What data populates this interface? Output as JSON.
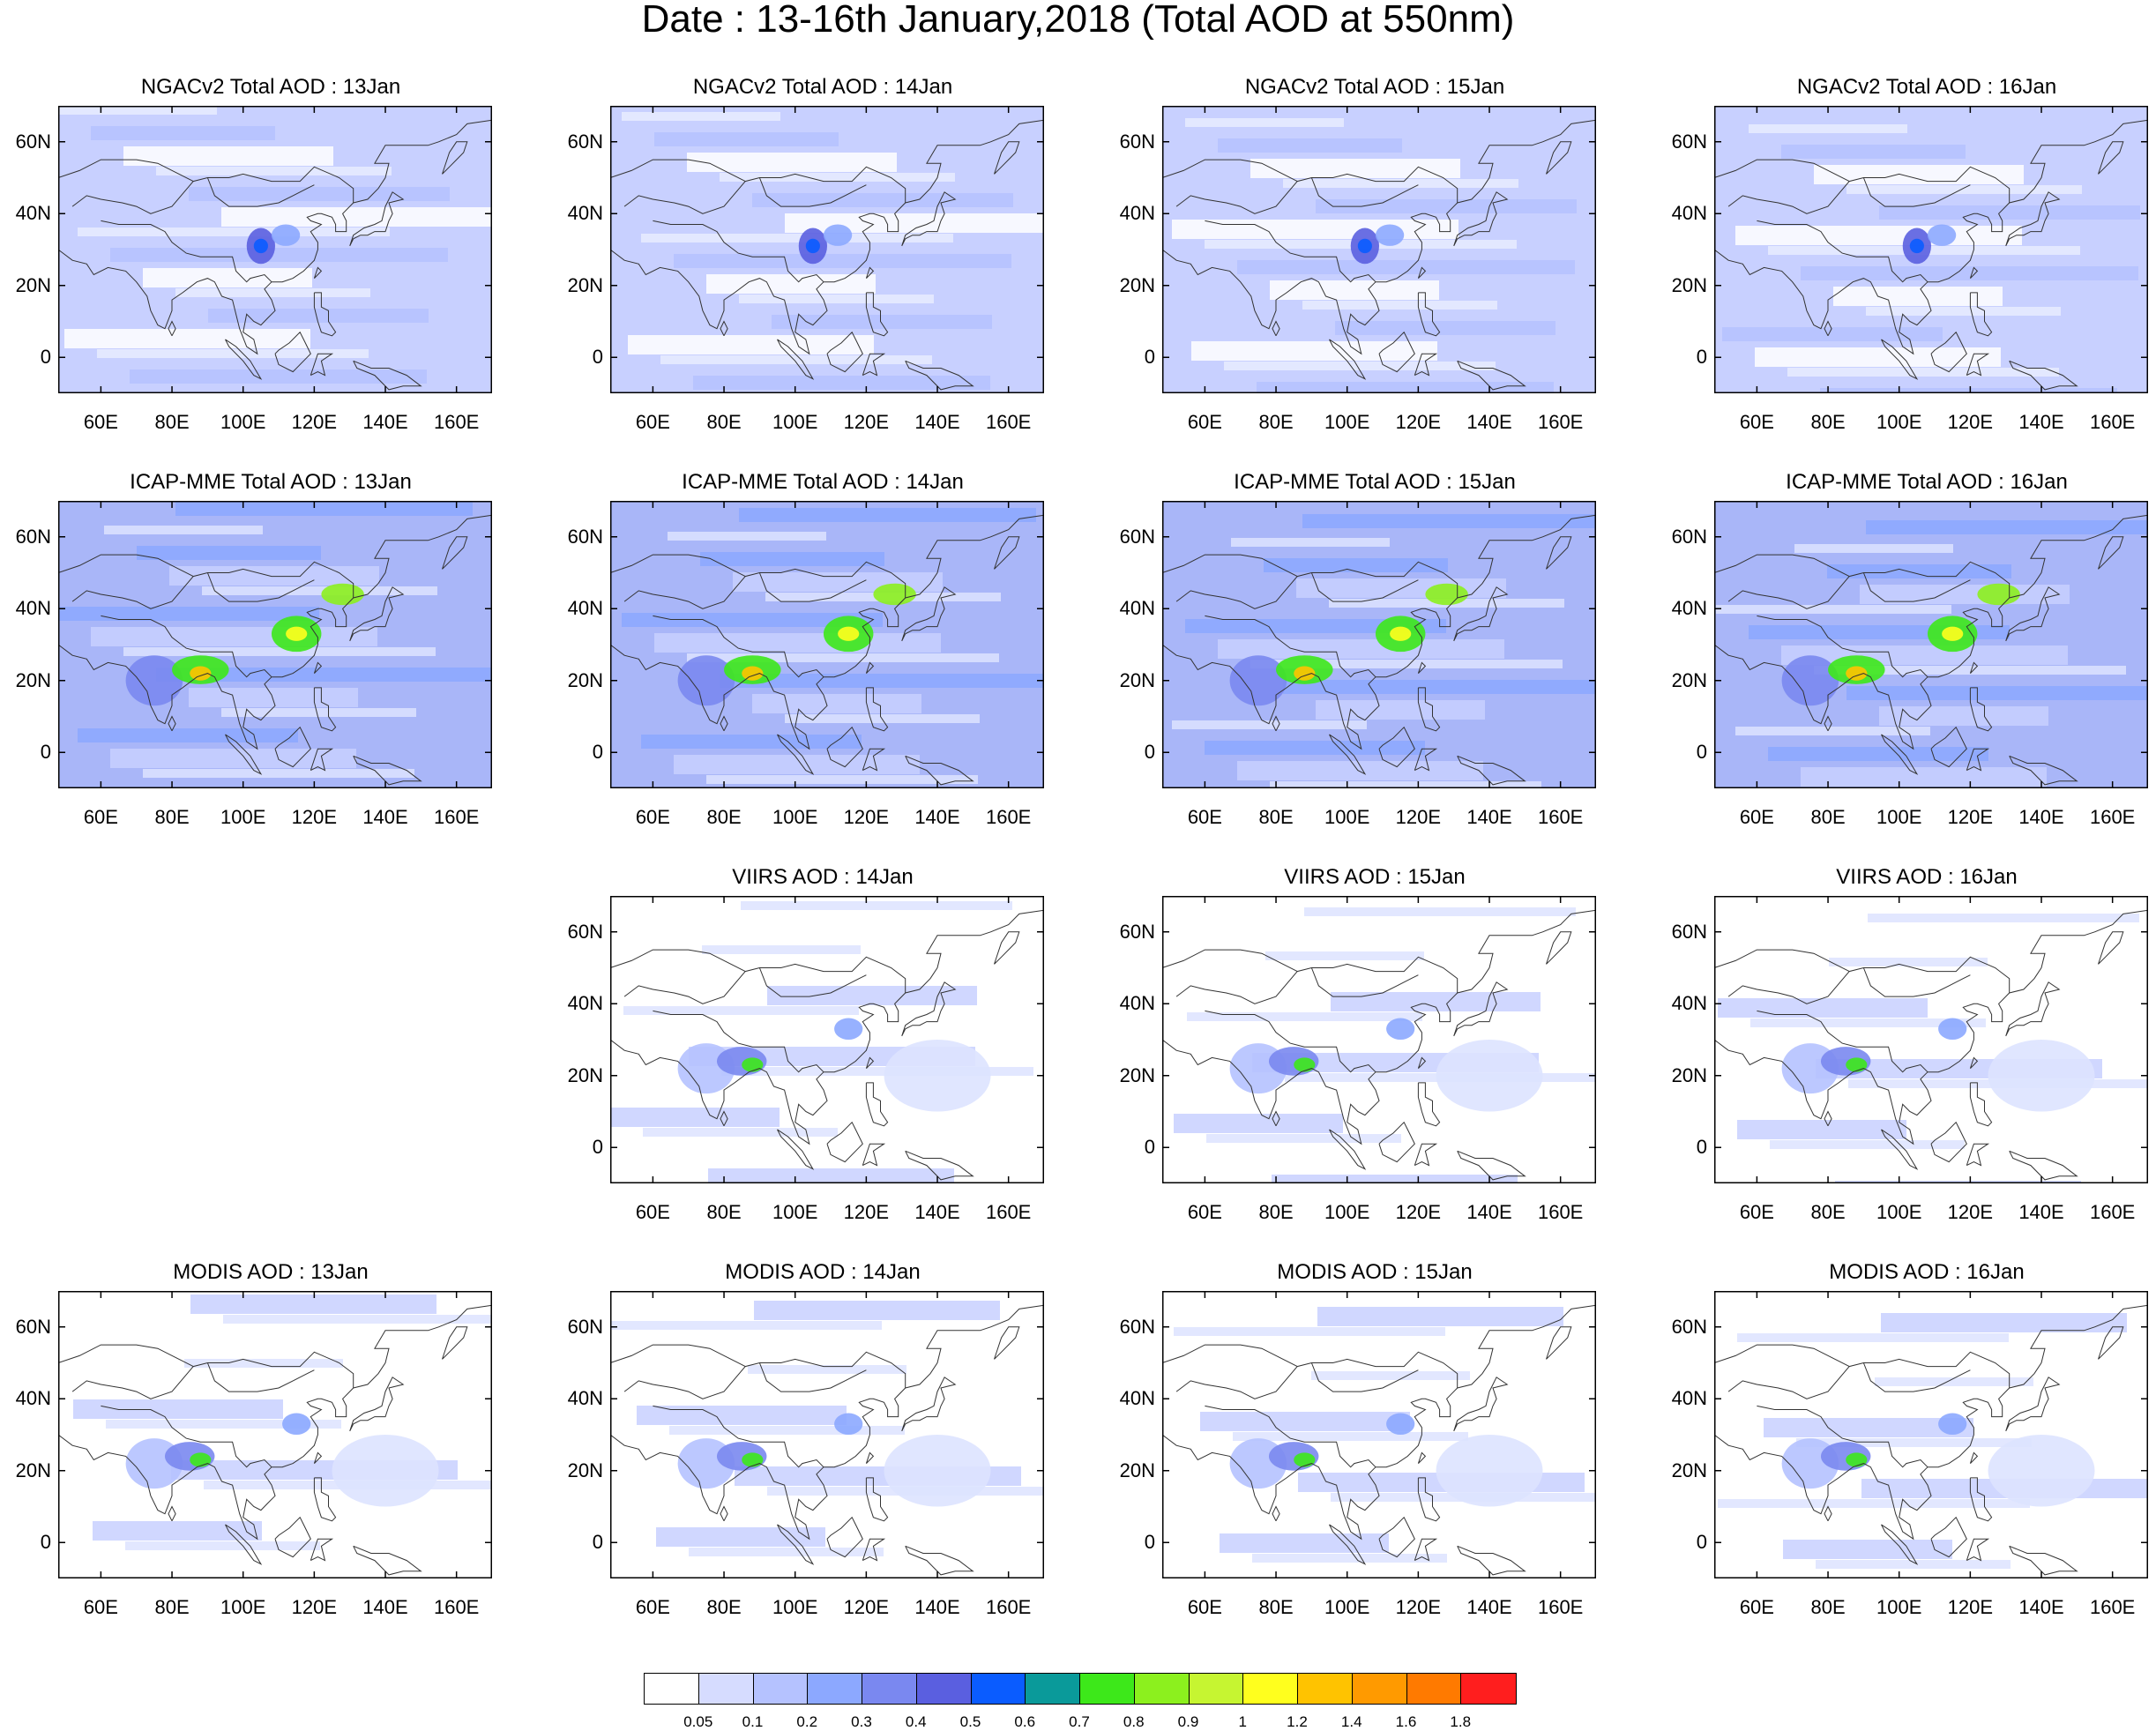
{
  "title": "Date : 13-16th January,2018 (Total AOD at 550nm)",
  "lat_ticks": [
    "60N",
    "40N",
    "20N",
    "0"
  ],
  "lon_ticks": [
    "60E",
    "80E",
    "100E",
    "120E",
    "140E",
    "160E"
  ],
  "panels": [
    {
      "title": "NGACv2 Total AOD : 13Jan",
      "row": 0,
      "col": 0,
      "style": "ngac"
    },
    {
      "title": "NGACv2 Total AOD : 14Jan",
      "row": 0,
      "col": 1,
      "style": "ngac"
    },
    {
      "title": "NGACv2 Total AOD : 15Jan",
      "row": 0,
      "col": 2,
      "style": "ngac"
    },
    {
      "title": "NGACv2 Total AOD : 16Jan",
      "row": 0,
      "col": 3,
      "style": "ngac"
    },
    {
      "title": "ICAP-MME Total AOD : 13Jan",
      "row": 1,
      "col": 0,
      "style": "icap"
    },
    {
      "title": "ICAP-MME Total AOD : 14Jan",
      "row": 1,
      "col": 1,
      "style": "icap"
    },
    {
      "title": "ICAP-MME Total AOD : 15Jan",
      "row": 1,
      "col": 2,
      "style": "icap"
    },
    {
      "title": "ICAP-MME Total AOD : 16Jan",
      "row": 1,
      "col": 3,
      "style": "icap"
    },
    {
      "title": "VIIRS AOD : 14Jan",
      "row": 2,
      "col": 1,
      "style": "sat"
    },
    {
      "title": "VIIRS AOD : 15Jan",
      "row": 2,
      "col": 2,
      "style": "sat"
    },
    {
      "title": "VIIRS AOD : 16Jan",
      "row": 2,
      "col": 3,
      "style": "sat"
    },
    {
      "title": "MODIS AOD : 13Jan",
      "row": 3,
      "col": 0,
      "style": "sat"
    },
    {
      "title": "MODIS AOD : 14Jan",
      "row": 3,
      "col": 1,
      "style": "sat"
    },
    {
      "title": "MODIS AOD : 15Jan",
      "row": 3,
      "col": 2,
      "style": "sat"
    },
    {
      "title": "MODIS AOD : 16Jan",
      "row": 3,
      "col": 3,
      "style": "sat"
    }
  ],
  "colorbar": {
    "labels": [
      "0.05",
      "0.1",
      "0.2",
      "0.3",
      "0.4",
      "0.5",
      "0.6",
      "0.7",
      "0.8",
      "0.9",
      "1",
      "1.2",
      "1.4",
      "1.6",
      "1.8"
    ],
    "colors": [
      "#ffffff",
      "#d6dcff",
      "#b5c2ff",
      "#8ca8ff",
      "#7a88f0",
      "#5a5fe0",
      "#0a5cff",
      "#0a9a9a",
      "#3de81a",
      "#8cf01e",
      "#c6f531",
      "#ffff1e",
      "#ffc300",
      "#ff9a00",
      "#ff7a00",
      "#ff1e1e"
    ]
  }
}
